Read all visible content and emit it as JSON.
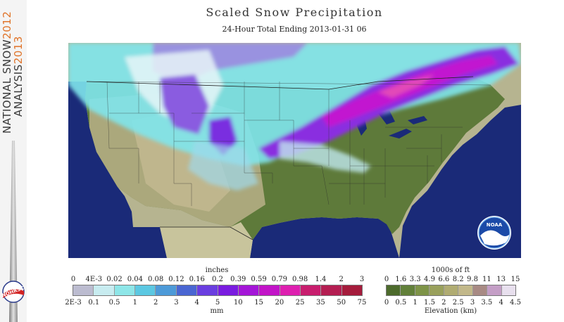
{
  "sidebar": {
    "line1_dark": "NATIONAL SNOW",
    "line1_year": "2012",
    "line2_dark": "ANALYSIS",
    "line2_year": "2013",
    "logo_text": "NOHRSC"
  },
  "title": "Scaled Snow Precipitation",
  "subtitle": "24-Hour Total Ending 2013-01-31 06",
  "noaa_logo_text": "NOAA",
  "precip_legend": {
    "top_unit": "inches",
    "bottom_unit": "mm",
    "top_ticks": [
      "0",
      "4E-3",
      "0.02",
      "0.04",
      "0.08",
      "0.12",
      "0.16",
      "0.2",
      "0.39",
      "0.59",
      "0.79",
      "0.98",
      "1.4",
      "2",
      "3"
    ],
    "bottom_ticks": [
      "2E-3",
      "0.1",
      "0.5",
      "1",
      "2",
      "3",
      "4",
      "5",
      "10",
      "15",
      "20",
      "25",
      "35",
      "50",
      "75"
    ],
    "colors": [
      "#bcbcd0",
      "#c8ecf0",
      "#8ee6e8",
      "#5cc8e2",
      "#4d9ad8",
      "#4a66d2",
      "#6a3ee0",
      "#7a1ce0",
      "#a416d8",
      "#c214c8",
      "#de20b0",
      "#c81e6e",
      "#b41e52",
      "#a51c3c"
    ]
  },
  "elevation_legend": {
    "top_unit": "1000s of ft",
    "bottom_unit": "Elevation (km)",
    "top_ticks": [
      "0",
      "1.6",
      "3.3",
      "4.9",
      "6.6",
      "8.2",
      "9.8",
      "11",
      "13",
      "15"
    ],
    "bottom_ticks": [
      "0",
      "0.5",
      "1",
      "1.5",
      "2",
      "2.5",
      "3",
      "3.5",
      "4",
      "4.5"
    ],
    "colors": [
      "#4d6b2c",
      "#62803a",
      "#7e9448",
      "#99a05c",
      "#b0ac72",
      "#c2b88a",
      "#a88a84",
      "#c49ec6",
      "#e8e0ee"
    ]
  }
}
